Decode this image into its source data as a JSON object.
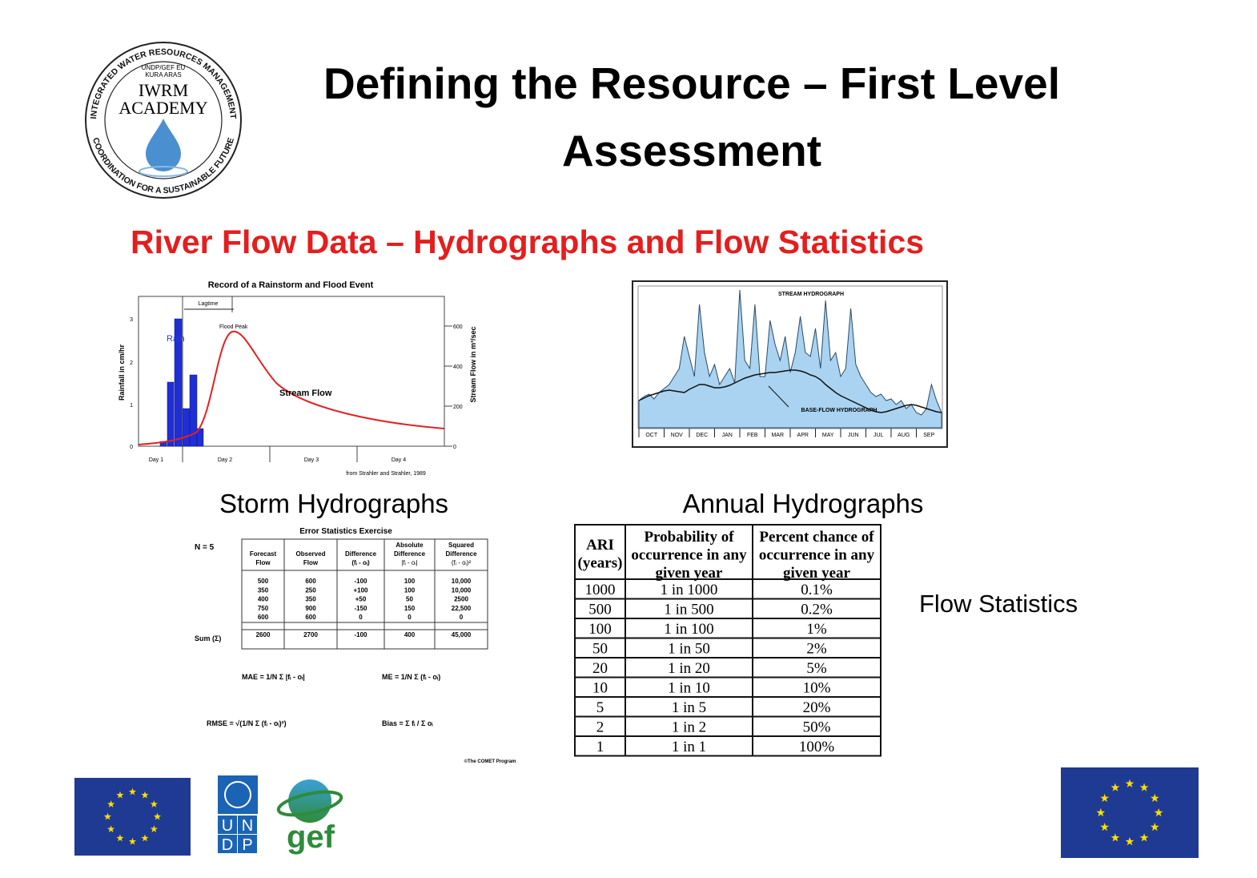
{
  "logo": {
    "ring_top": "INTEGRATED WATER RESOURCES MANAGEMENT",
    "ring_bottom": "COORDINATION FOR A SUSTAINABLE FUTURE",
    "lines": [
      "UNDP/GEF EU",
      "KURA ARAS",
      "IWRM",
      "ACADEMY"
    ]
  },
  "header": {
    "title_lines": [
      "Defining the Resource – First Level",
      "Assessment"
    ]
  },
  "subtitle": "River Flow Data – Hydrographs and Flow Statistics",
  "storm_chart": {
    "title": "Record of a Rainstorm and Flood Event",
    "y_left_label": "Rainfall in cm/hr",
    "y_right_label": "Stream Flow in m³/sec",
    "lagtime": "Lagtime",
    "flood_peak": "Flood Peak",
    "rain": "Rain",
    "stream_flow": "Stream Flow",
    "x_labels": [
      "Day 1",
      "Day 2",
      "Day 3",
      "Day 4"
    ],
    "y_left_ticks": [
      "0",
      "1",
      "2",
      "3"
    ],
    "y_right_ticks": [
      "0",
      "200",
      "400",
      "600"
    ],
    "source": "from Strahler and Strahler, 1989",
    "caption": "Storm Hydrographs"
  },
  "annual_chart": {
    "stream_label": "STREAM HYDROGRAPH",
    "base_label": "BASE-FLOW HYDROGRAPH",
    "months": [
      "OCT",
      "NOV",
      "DEC",
      "JAN",
      "FEB",
      "MAR",
      "APR",
      "MAY",
      "JUN",
      "JUL",
      "AUG",
      "SEP"
    ],
    "caption": "Annual Hydrographs"
  },
  "error_stats": {
    "title": "Error Statistics Exercise",
    "n_label": "N = 5",
    "sum_label": "Sum (Σ)",
    "columns": [
      [
        "Forecast",
        "Flow"
      ],
      [
        "Observed",
        "Flow"
      ],
      [
        "Difference",
        "(fᵢ - oᵢ)"
      ],
      [
        "Absolute",
        "Difference",
        "|fᵢ - oᵢ|"
      ],
      [
        "Squared",
        "Difference",
        "(fᵢ - oᵢ)²"
      ]
    ],
    "rows": [
      [
        "500",
        "600",
        "-100",
        "100",
        "10,000"
      ],
      [
        "350",
        "250",
        "+100",
        "100",
        "10,000"
      ],
      [
        "400",
        "350",
        "+50",
        "50",
        "2500"
      ],
      [
        "750",
        "900",
        "-150",
        "150",
        "22,500"
      ],
      [
        "600",
        "600",
        "0",
        "0",
        "0"
      ]
    ],
    "sum_row": [
      "2600",
      "2700",
      "-100",
      "400",
      "45,000"
    ],
    "formulas": [
      "MAE = 1/N Σ |fᵢ - oᵢ|",
      "ME = 1/N Σ (fᵢ - oᵢ)",
      "RMSE = √(1/N Σ (fᵢ - oᵢ)²)",
      "Bias = Σ fᵢ / Σ oᵢ"
    ],
    "credit": "©The COMET Program"
  },
  "ari_table": {
    "columns": [
      [
        "ARI",
        "(years)"
      ],
      [
        "Probability of",
        "occurrence in any",
        "given year"
      ],
      [
        "Percent chance of",
        "occurrence in any",
        "given year"
      ]
    ],
    "rows": [
      [
        "1000",
        "1 in 1000",
        "0.1%"
      ],
      [
        "500",
        "1 in 500",
        "0.2%"
      ],
      [
        "100",
        "1 in 100",
        "1%"
      ],
      [
        "50",
        "1 in 50",
        "2%"
      ],
      [
        "20",
        "1 in 20",
        "5%"
      ],
      [
        "10",
        "1 in 10",
        "10%"
      ],
      [
        "5",
        "1 in 5",
        "20%"
      ],
      [
        "2",
        "1 in 2",
        "50%"
      ],
      [
        "1",
        "1 in 1",
        "100%"
      ]
    ]
  },
  "flow_statistics_label": "Flow Statistics",
  "footer": {
    "undp_letters": [
      "U",
      "N",
      "D",
      "P"
    ],
    "gef": "gef"
  }
}
